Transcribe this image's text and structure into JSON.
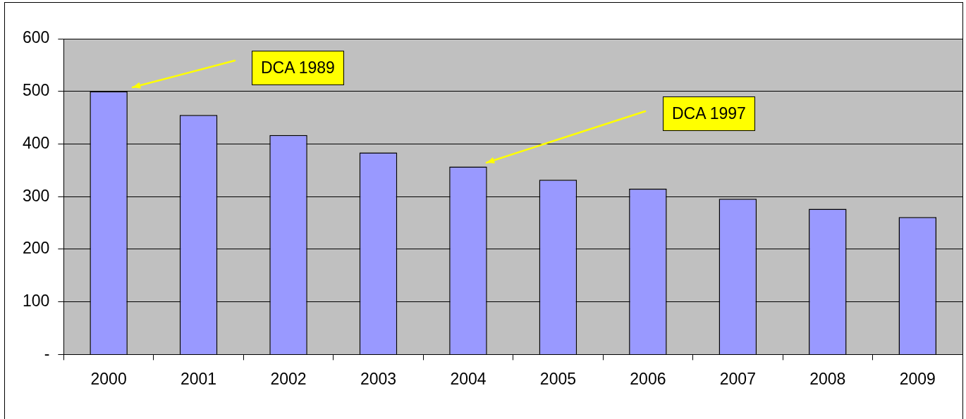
{
  "chart_data": {
    "type": "bar",
    "categories": [
      "2000",
      "2001",
      "2002",
      "2003",
      "2004",
      "2005",
      "2006",
      "2007",
      "2008",
      "2009"
    ],
    "values": [
      500,
      455,
      417,
      384,
      357,
      332,
      315,
      296,
      277,
      261
    ],
    "color": "#9999ff",
    "ylim": [
      0,
      600
    ],
    "yticks": [
      {
        "value": 0,
        "label": "-"
      },
      100,
      200,
      300,
      400,
      500,
      600
    ],
    "grid": "y",
    "legend": false,
    "annotations": [
      "DCA 1989",
      "DCA 1997"
    ]
  }
}
